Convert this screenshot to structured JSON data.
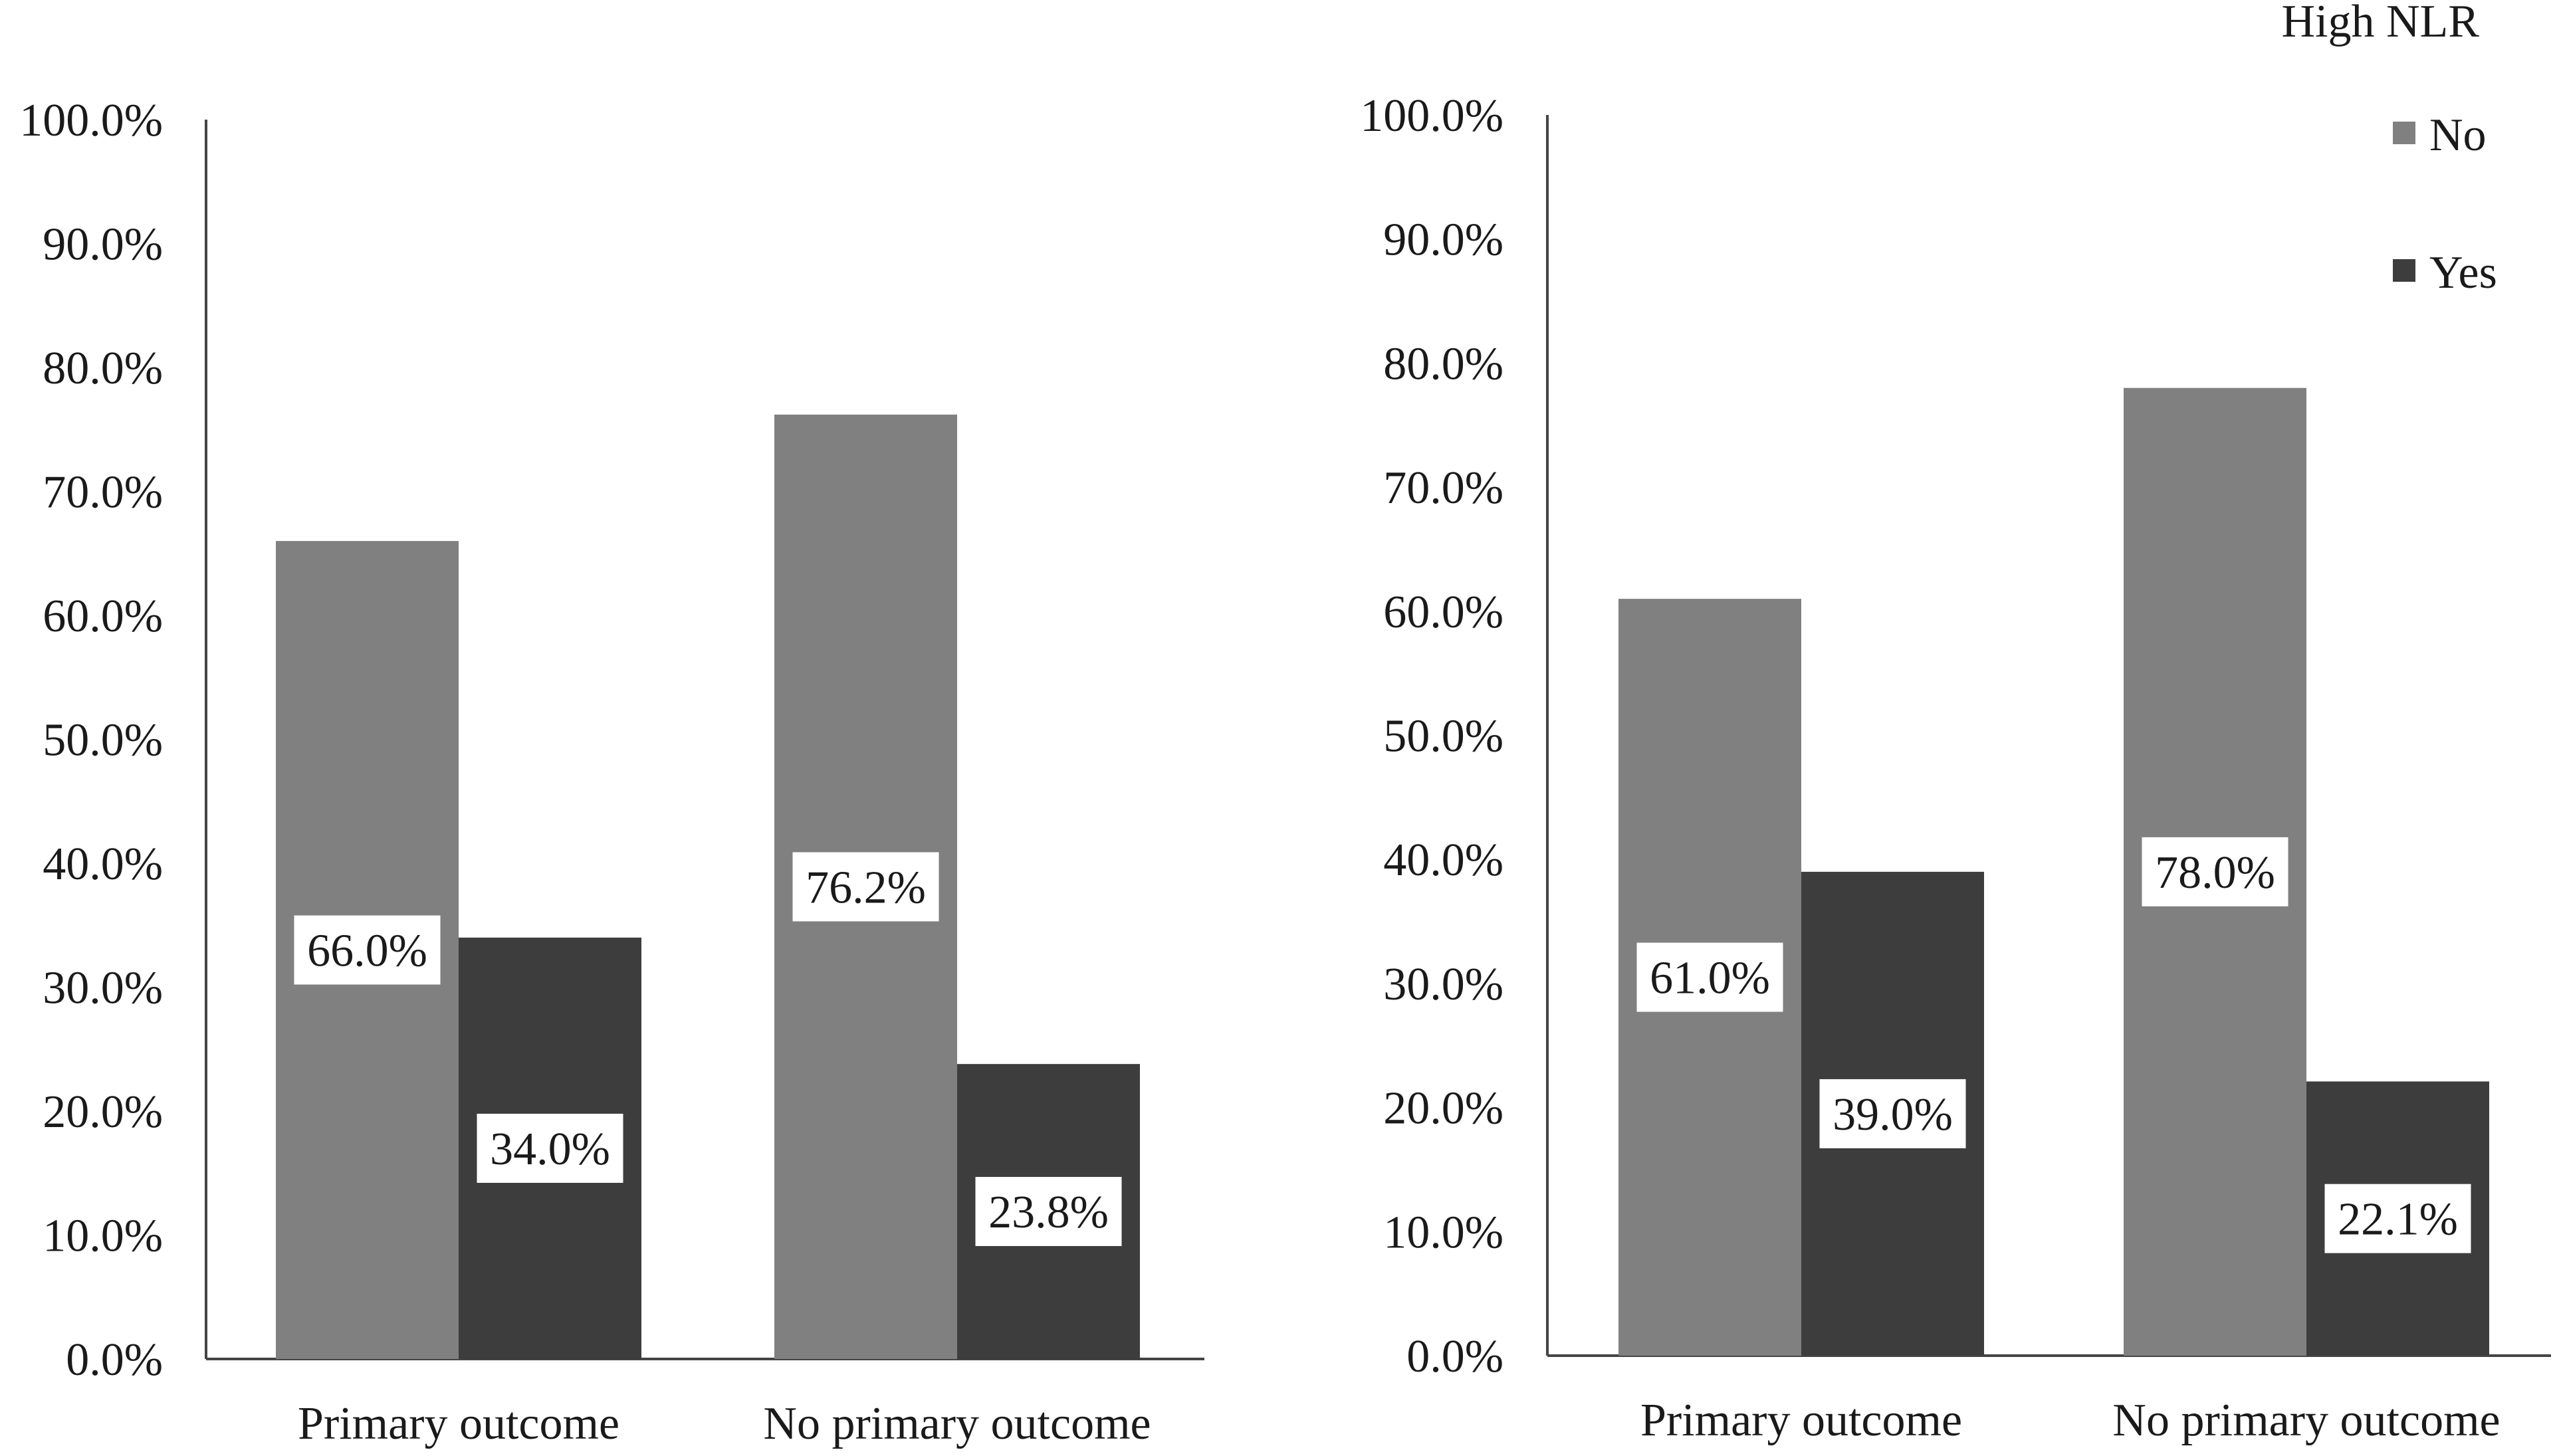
{
  "legend": {
    "title": "High NLR",
    "items": [
      {
        "label": "No",
        "color": "#808080"
      },
      {
        "label": "Yes",
        "color": "#3d3d3d"
      }
    ]
  },
  "chart_data": [
    {
      "type": "bar",
      "categories": [
        "Primary outcome",
        "No primary outcome"
      ],
      "series": [
        {
          "name": "No",
          "values": [
            66.0,
            76.2
          ]
        },
        {
          "name": "Yes",
          "values": [
            34.0,
            23.8
          ]
        }
      ],
      "data_labels": [
        [
          "66.0%",
          "76.2%"
        ],
        [
          "34.0%",
          "23.8%"
        ]
      ],
      "y_ticks": [
        "0.0%",
        "10.0%",
        "20.0%",
        "30.0%",
        "40.0%",
        "50.0%",
        "60.0%",
        "70.0%",
        "80.0%",
        "90.0%",
        "100.0%"
      ],
      "ylim": [
        0,
        100
      ],
      "grid": false
    },
    {
      "type": "bar",
      "categories": [
        "Primary outcome",
        "No primary outcome"
      ],
      "series": [
        {
          "name": "No",
          "values": [
            61.0,
            78.0
          ]
        },
        {
          "name": "Yes",
          "values": [
            39.0,
            22.1
          ]
        }
      ],
      "data_labels": [
        [
          "61.0%",
          "78.0%"
        ],
        [
          "39.0%",
          "22.1%"
        ]
      ],
      "y_ticks": [
        "0.0%",
        "10.0%",
        "20.0%",
        "30.0%",
        "40.0%",
        "50.0%",
        "60.0%",
        "70.0%",
        "80.0%",
        "90.0%",
        "100.0%"
      ],
      "ylim": [
        0,
        100
      ],
      "grid": false,
      "legend_position": "top-right"
    }
  ]
}
